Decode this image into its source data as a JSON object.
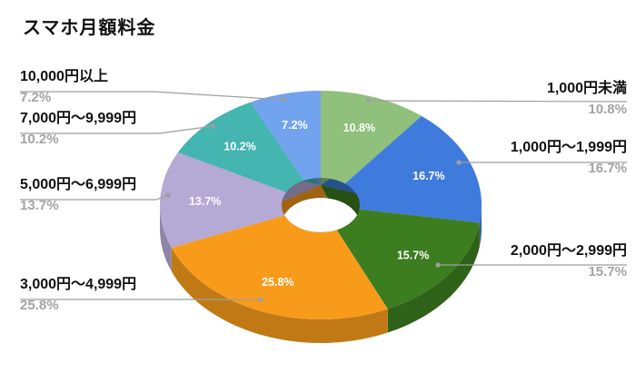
{
  "chart_data": {
    "type": "pie",
    "variant": "3d-donut",
    "title": "スマホ月額料金",
    "legend_position": "callout-labels",
    "background": "#ffffff",
    "leader_line_color": "#9e9e9e",
    "label_text_color": "#111111",
    "percent_text_color": "#a3a3a3",
    "slice_label_text_color": "#ffffff",
    "categories": [
      "1,000円未満",
      "1,000円〜1,999円",
      "2,000円〜2,999円",
      "3,000円〜4,999円",
      "5,000円〜6,999円",
      "7,000円〜9,999円",
      "10,000円以上"
    ],
    "values": [
      10.8,
      16.7,
      15.7,
      25.8,
      13.7,
      10.2,
      7.2
    ],
    "slices": [
      {
        "label": "1,000円未満",
        "value": 10.8,
        "pct_label": "10.8%",
        "color": "#8fc07c"
      },
      {
        "label": "1,000円〜1,999円",
        "value": 16.7,
        "pct_label": "16.7%",
        "color": "#3f7bdc"
      },
      {
        "label": "2,000円〜2,999円",
        "value": 15.7,
        "pct_label": "15.7%",
        "color": "#3b7d1f"
      },
      {
        "label": "3,000円〜4,999円",
        "value": 25.8,
        "pct_label": "25.8%",
        "color": "#f89b1b"
      },
      {
        "label": "5,000円〜6,999円",
        "value": 13.7,
        "pct_label": "13.7%",
        "color": "#b5a9d6"
      },
      {
        "label": "7,000円〜9,999円",
        "value": 10.2,
        "pct_label": "10.2%",
        "color": "#44b5b1"
      },
      {
        "label": "10,000円以上",
        "value": 7.2,
        "pct_label": "7.2%",
        "color": "#72a3ee"
      }
    ]
  }
}
